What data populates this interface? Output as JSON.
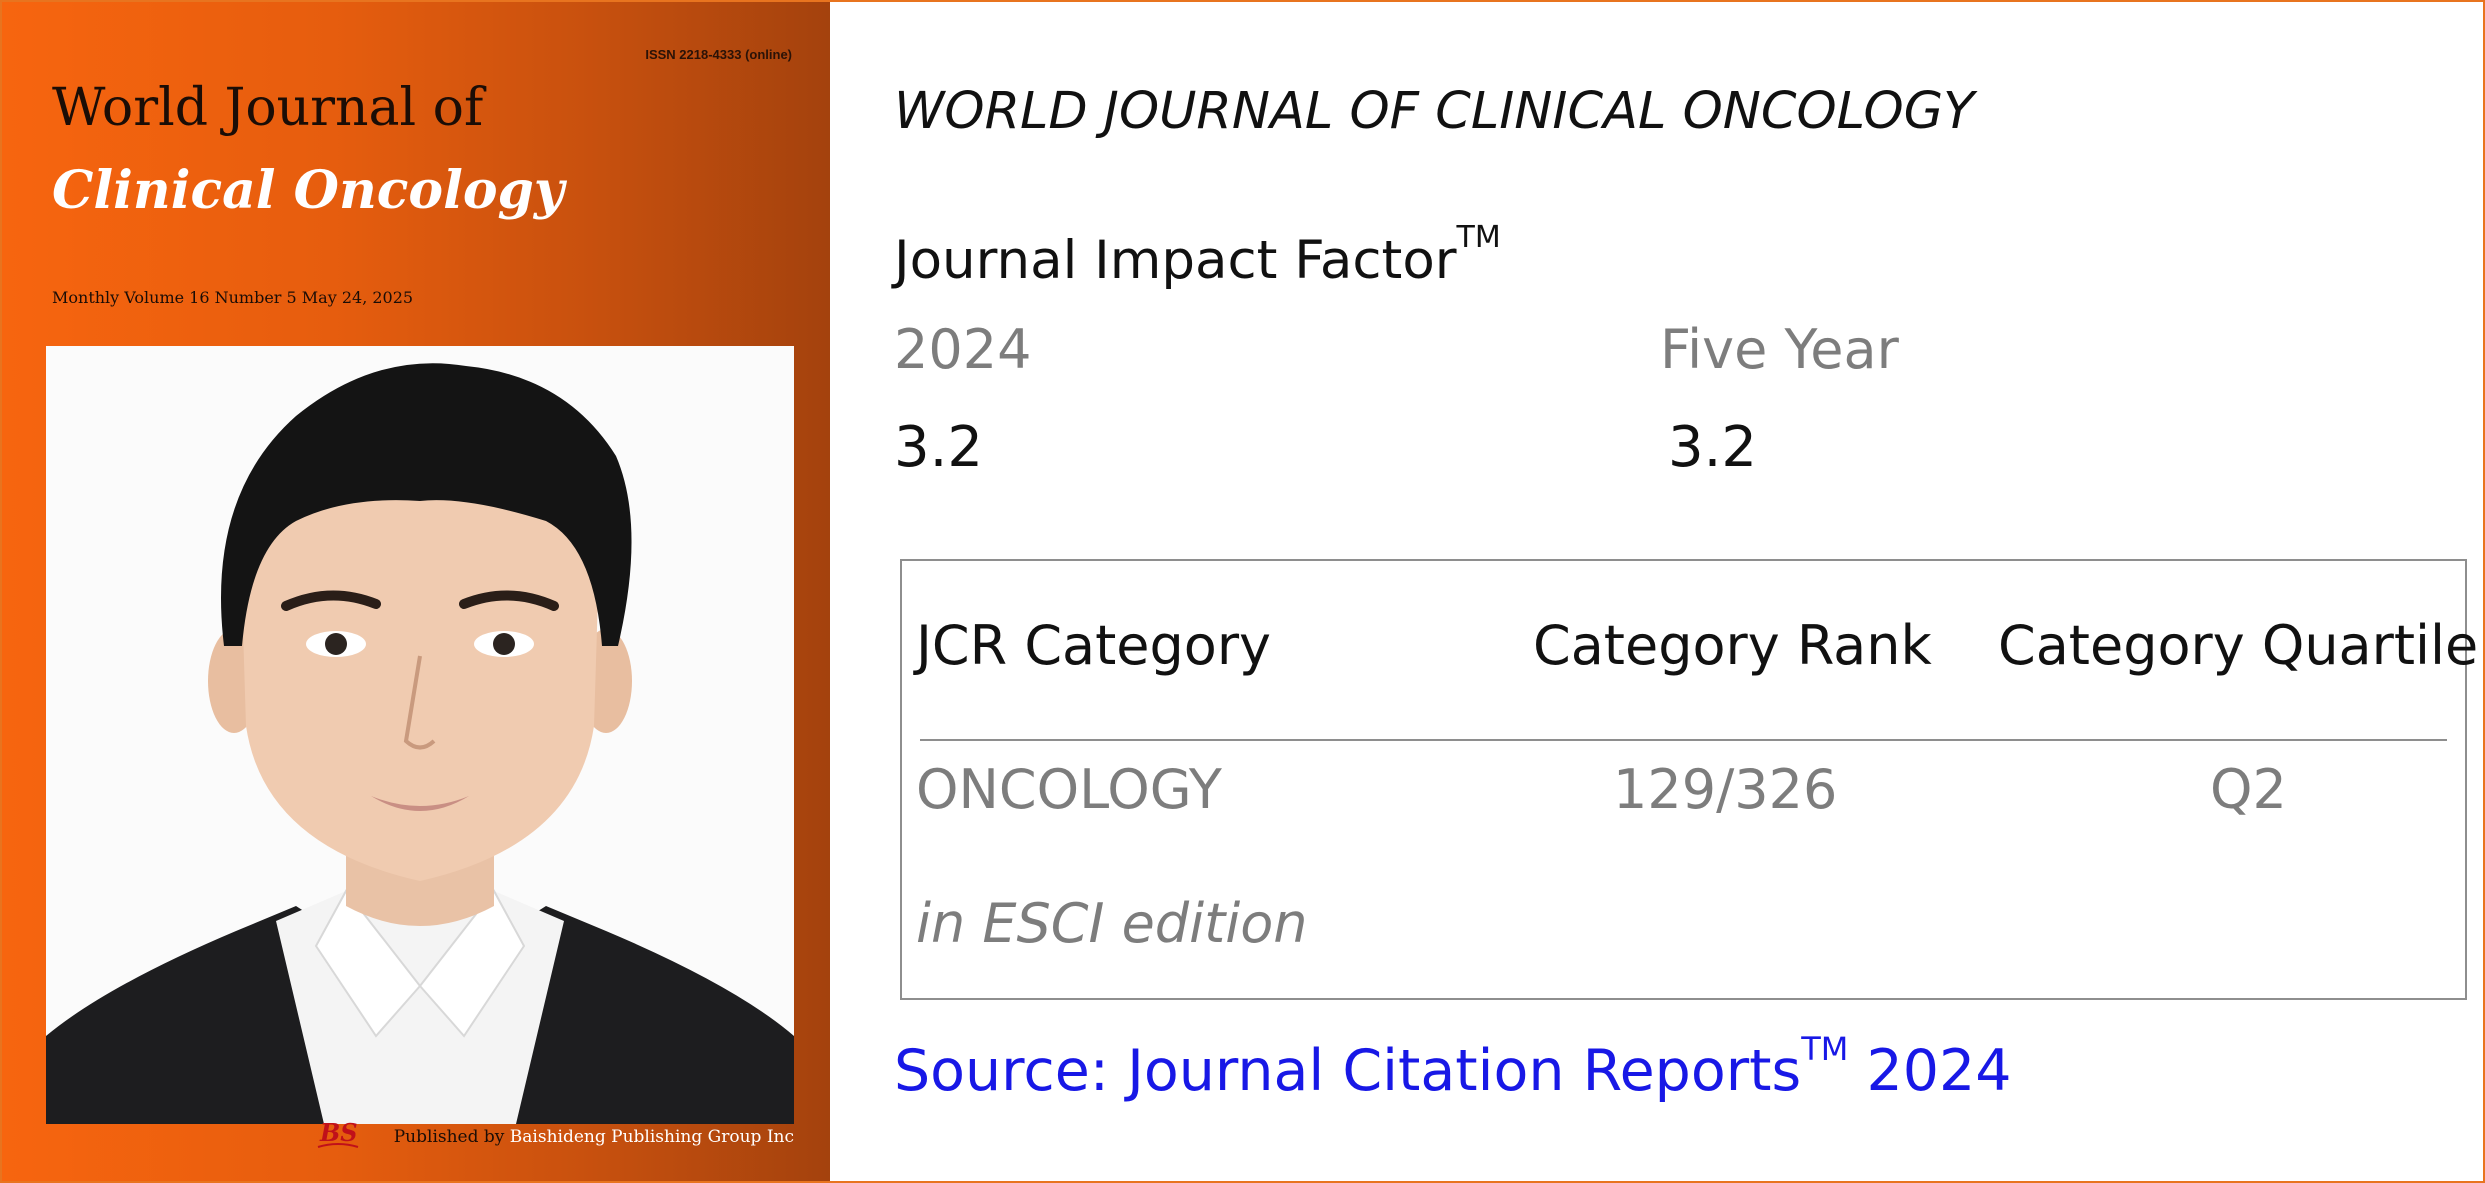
{
  "cover": {
    "issn": "ISSN 2218-4333 (online)",
    "title_line1": "World Journal of",
    "title_line2": "Clinical Oncology",
    "issue_line": "Monthly Volume 16 Number 5 May 24, 2025",
    "published_by_prefix": "Published by",
    "publisher_name": "Baishideng Publishing Group Inc",
    "publisher_logo_text": "BS",
    "background_colors": [
      "#f7650f",
      "#a4420d"
    ]
  },
  "info": {
    "journal_title": "WORLD JOURNAL OF CLINICAL ONCOLOGY",
    "impact_factor_label": "Journal Impact Factor",
    "trademark": "TM",
    "year_label": "2024",
    "five_year_label": "Five Year",
    "year_value": "3.2",
    "five_year_value": "3.2",
    "table": {
      "headers": [
        "JCR Category",
        "Category Rank",
        "Category Quartile"
      ],
      "row": [
        "ONCOLOGY",
        "129/326",
        "Q2"
      ],
      "edition": "in ESCI edition"
    },
    "source_prefix": "Source: Journal Citation Reports",
    "source_year": "2024",
    "colors": {
      "source_text": "#1818e6",
      "muted_text": "#7d7d7d",
      "frame": "#e8741f"
    }
  }
}
